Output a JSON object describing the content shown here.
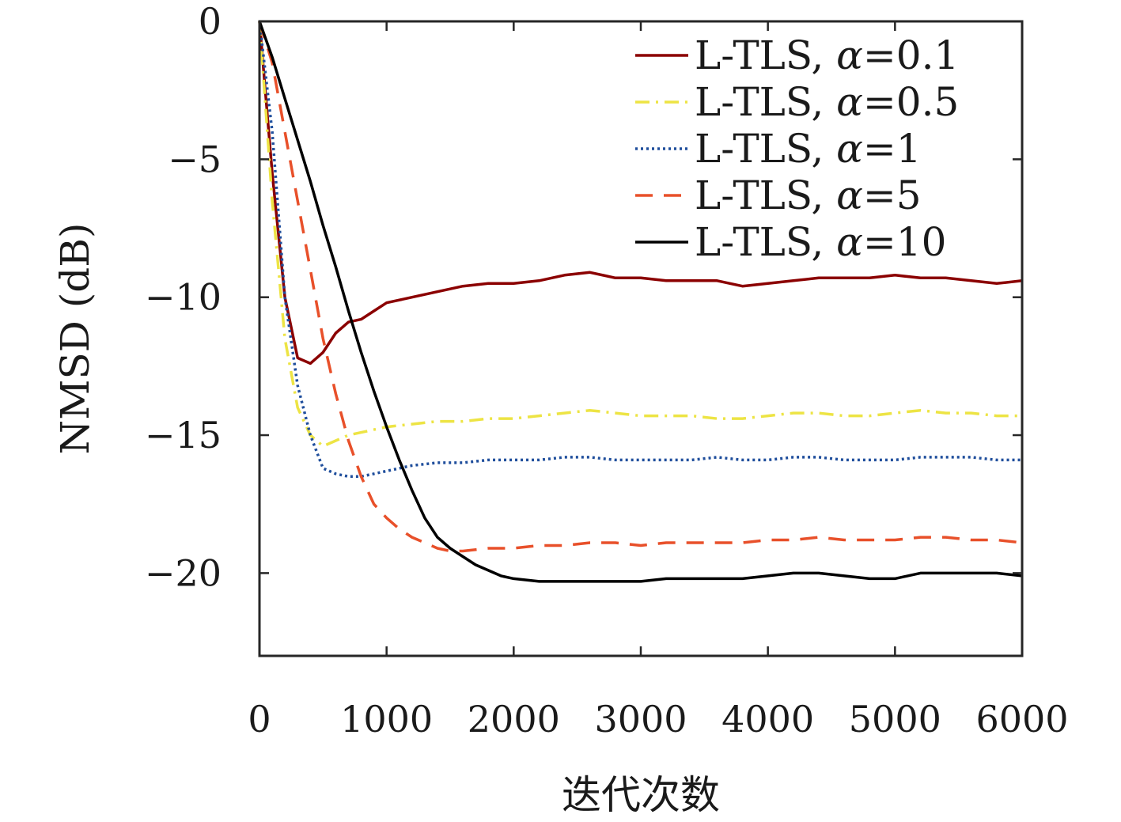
{
  "chart_data": {
    "type": "line",
    "title": "",
    "xlabel": "迭代次数",
    "ylabel": "NMSD (dB)",
    "xlim": [
      0,
      6000
    ],
    "ylim": [
      -23,
      0
    ],
    "xticks": [
      0,
      1000,
      2000,
      3000,
      4000,
      5000,
      6000
    ],
    "xtick_labels": [
      "0",
      "1000",
      "2000",
      "3000",
      "4000",
      "5000",
      "6000"
    ],
    "yticks": [
      0,
      -5,
      -10,
      -15,
      -20
    ],
    "ytick_labels": [
      "0",
      "−5",
      "−10",
      "−15",
      "−20"
    ],
    "grid": false,
    "legend_position": "top-right",
    "series": [
      {
        "name": "L-TLS, α=0.1",
        "legend_prefix": "L-TLS, ",
        "legend_symbol": "α",
        "legend_value": "=0.1",
        "color": "#8B0000",
        "dash": "solid",
        "x": [
          0,
          100,
          200,
          300,
          400,
          500,
          600,
          700,
          800,
          900,
          1000,
          1200,
          1400,
          1600,
          1800,
          2000,
          2200,
          2400,
          2600,
          2800,
          3000,
          3200,
          3400,
          3600,
          3800,
          4000,
          4200,
          4400,
          4600,
          4800,
          5000,
          5200,
          5400,
          5600,
          5800,
          6000
        ],
        "y": [
          0,
          -5.5,
          -10.0,
          -12.2,
          -12.4,
          -12.0,
          -11.3,
          -10.9,
          -10.8,
          -10.5,
          -10.2,
          -10.0,
          -9.8,
          -9.6,
          -9.5,
          -9.5,
          -9.4,
          -9.2,
          -9.1,
          -9.3,
          -9.3,
          -9.4,
          -9.4,
          -9.4,
          -9.6,
          -9.5,
          -9.4,
          -9.3,
          -9.3,
          -9.3,
          -9.2,
          -9.3,
          -9.3,
          -9.4,
          -9.5,
          -9.4
        ]
      },
      {
        "name": "L-TLS, α=0.5",
        "legend_prefix": "L-TLS, ",
        "legend_symbol": "α",
        "legend_value": "=0.5",
        "color": "#EDE444",
        "dash": "dashdot",
        "x": [
          0,
          100,
          200,
          300,
          400,
          500,
          600,
          700,
          800,
          900,
          1000,
          1200,
          1400,
          1600,
          1800,
          2000,
          2200,
          2400,
          2600,
          2800,
          3000,
          3200,
          3400,
          3600,
          3800,
          4000,
          4200,
          4400,
          4600,
          4800,
          5000,
          5200,
          5400,
          5600,
          5800,
          6000
        ],
        "y": [
          0,
          -6.5,
          -11.5,
          -14.0,
          -15.0,
          -15.4,
          -15.2,
          -15.0,
          -14.9,
          -14.8,
          -14.7,
          -14.6,
          -14.5,
          -14.5,
          -14.4,
          -14.4,
          -14.3,
          -14.2,
          -14.1,
          -14.2,
          -14.3,
          -14.3,
          -14.3,
          -14.4,
          -14.4,
          -14.3,
          -14.2,
          -14.2,
          -14.3,
          -14.3,
          -14.2,
          -14.1,
          -14.2,
          -14.2,
          -14.3,
          -14.3
        ]
      },
      {
        "name": "L-TLS, α=1",
        "legend_prefix": "L-TLS, ",
        "legend_symbol": "α",
        "legend_value": "=1",
        "color": "#1F4E9C",
        "dash": "dotted",
        "x": [
          0,
          100,
          200,
          300,
          400,
          500,
          600,
          700,
          800,
          900,
          1000,
          1200,
          1400,
          1600,
          1800,
          2000,
          2200,
          2400,
          2600,
          2800,
          3000,
          3200,
          3400,
          3600,
          3800,
          4000,
          4200,
          4400,
          4600,
          4800,
          5000,
          5200,
          5400,
          5600,
          5800,
          6000
        ],
        "y": [
          0,
          -4.0,
          -10.0,
          -13.2,
          -15.0,
          -16.2,
          -16.4,
          -16.5,
          -16.5,
          -16.4,
          -16.3,
          -16.1,
          -16.0,
          -16.0,
          -15.9,
          -15.9,
          -15.9,
          -15.8,
          -15.8,
          -15.9,
          -15.9,
          -15.9,
          -15.9,
          -15.8,
          -15.9,
          -15.9,
          -15.8,
          -15.8,
          -15.9,
          -15.9,
          -15.9,
          -15.8,
          -15.8,
          -15.8,
          -15.9,
          -15.9
        ]
      },
      {
        "name": "L-TLS, α=5",
        "legend_prefix": "L-TLS, ",
        "legend_symbol": "α",
        "legend_value": "=5",
        "color": "#E8502A",
        "dash": "dashed",
        "x": [
          0,
          100,
          200,
          300,
          400,
          500,
          600,
          700,
          800,
          900,
          1000,
          1100,
          1200,
          1300,
          1400,
          1500,
          1600,
          1800,
          2000,
          2200,
          2400,
          2600,
          2800,
          3000,
          3200,
          3400,
          3600,
          3800,
          4000,
          4200,
          4400,
          4600,
          4800,
          5000,
          5200,
          5400,
          5600,
          5800,
          6000
        ],
        "y": [
          0,
          -1.5,
          -4.0,
          -6.5,
          -9.0,
          -11.5,
          -13.5,
          -15.2,
          -16.5,
          -17.5,
          -18.0,
          -18.4,
          -18.7,
          -18.9,
          -19.1,
          -19.2,
          -19.2,
          -19.1,
          -19.1,
          -19.0,
          -19.0,
          -18.9,
          -18.9,
          -19.0,
          -18.9,
          -18.9,
          -18.9,
          -18.9,
          -18.8,
          -18.8,
          -18.7,
          -18.8,
          -18.8,
          -18.8,
          -18.7,
          -18.7,
          -18.8,
          -18.8,
          -18.9
        ]
      },
      {
        "name": "L-TLS, α=10",
        "legend_prefix": "L-TLS, ",
        "legend_symbol": "α",
        "legend_value": "=10",
        "color": "#000000",
        "dash": "solid",
        "x": [
          0,
          100,
          200,
          300,
          400,
          500,
          600,
          700,
          800,
          900,
          1000,
          1100,
          1200,
          1300,
          1400,
          1500,
          1600,
          1700,
          1800,
          1900,
          2000,
          2200,
          2400,
          2600,
          2800,
          3000,
          3200,
          3400,
          3600,
          3800,
          4000,
          4200,
          4400,
          4600,
          4800,
          5000,
          5200,
          5400,
          5600,
          5800,
          6000
        ],
        "y": [
          0,
          -1.3,
          -2.8,
          -4.3,
          -5.8,
          -7.4,
          -8.9,
          -10.5,
          -12.0,
          -13.4,
          -14.7,
          -15.9,
          -17.0,
          -18.0,
          -18.7,
          -19.1,
          -19.4,
          -19.7,
          -19.9,
          -20.1,
          -20.2,
          -20.3,
          -20.3,
          -20.3,
          -20.3,
          -20.3,
          -20.2,
          -20.2,
          -20.2,
          -20.2,
          -20.1,
          -20.0,
          -20.0,
          -20.1,
          -20.2,
          -20.2,
          -20.0,
          -20.0,
          -20.0,
          -20.0,
          -20.1
        ]
      }
    ]
  }
}
